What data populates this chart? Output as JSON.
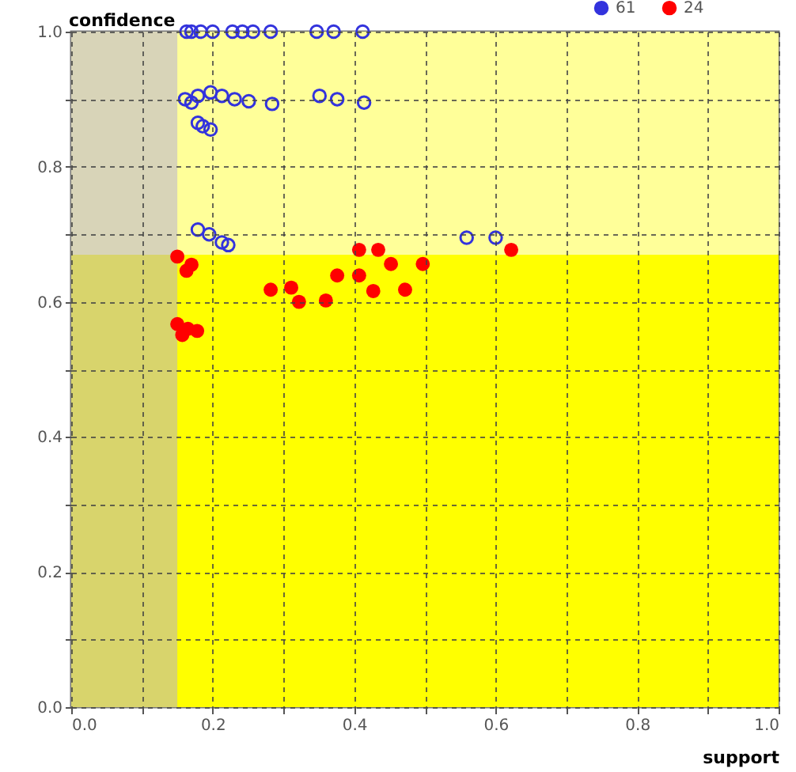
{
  "chart_data": {
    "type": "scatter",
    "xlabel": "support",
    "ylabel": "confidence",
    "xlim": [
      0,
      1
    ],
    "ylim": [
      0,
      1
    ],
    "xticks": [
      {
        "value": 0,
        "label": "0.0"
      },
      {
        "value": 0.1,
        "label": null
      },
      0.2,
      {
        "value": 0.3,
        "label": null
      },
      0.4,
      {
        "value": 0.5,
        "label": null
      },
      0.6,
      {
        "value": 0.7,
        "label": null
      },
      0.8,
      {
        "value": 0.9,
        "label": null
      },
      {
        "value": 1,
        "label": "1.0"
      }
    ],
    "yticks": [
      {
        "value": 0,
        "label": "0.0"
      },
      {
        "value": 0.1,
        "label": null
      },
      0.2,
      {
        "value": 0.3,
        "label": null
      },
      0.4,
      {
        "value": 0.5,
        "label": null
      },
      0.6,
      {
        "value": 0.7,
        "label": null
      },
      0.8,
      {
        "value": 0.9,
        "label": null
      },
      {
        "value": 1,
        "label": "1.0"
      }
    ],
    "grid": true,
    "legend": "top right",
    "marker": "circle",
    "bands": [
      {
        "axis": "y",
        "from": 0,
        "to": 0.67,
        "color": "#ffff00"
      },
      {
        "axis": "y",
        "from": 0.67,
        "to": 1,
        "color": "#ffff99"
      },
      {
        "axis": "x",
        "from": 0,
        "to": 0.15,
        "color": "#b1a9d7"
      }
    ],
    "series": [
      {
        "name": "61",
        "color": "#3333dd",
        "x": [
          0.163,
          0.17,
          0.183,
          0.2,
          0.228,
          0.242,
          0.257,
          0.282,
          0.347,
          0.371,
          0.412,
          0.161,
          0.17,
          0.179,
          0.197,
          0.213,
          0.231,
          0.251,
          0.284,
          0.351,
          0.376,
          0.414,
          0.179,
          0.186,
          0.197,
          0.179,
          0.195,
          0.213,
          0.222,
          0.559,
          0.6
        ],
        "values": [
          1.0,
          1.0,
          1.0,
          1.0,
          1.0,
          1.0,
          1.0,
          1.0,
          1.0,
          1.0,
          1.0,
          0.9,
          0.895,
          0.905,
          0.91,
          0.905,
          0.9,
          0.897,
          0.893,
          0.905,
          0.9,
          0.895,
          0.865,
          0.86,
          0.855,
          0.707,
          0.7,
          0.688,
          0.684,
          0.695,
          0.695
        ]
      },
      {
        "name": "24",
        "color": "#ff0000",
        "x": [
          0.15,
          0.163,
          0.17,
          0.15,
          0.157,
          0.165,
          0.178,
          0.282,
          0.311,
          0.322,
          0.36,
          0.376,
          0.407,
          0.407,
          0.427,
          0.434,
          0.452,
          0.472,
          0.497,
          0.622
        ],
        "values": [
          0.667,
          0.646,
          0.655,
          0.567,
          0.551,
          0.56,
          0.557,
          0.618,
          0.621,
          0.6,
          0.602,
          0.639,
          0.677,
          0.639,
          0.616,
          0.677,
          0.656,
          0.618,
          0.656,
          0.677
        ]
      }
    ]
  }
}
